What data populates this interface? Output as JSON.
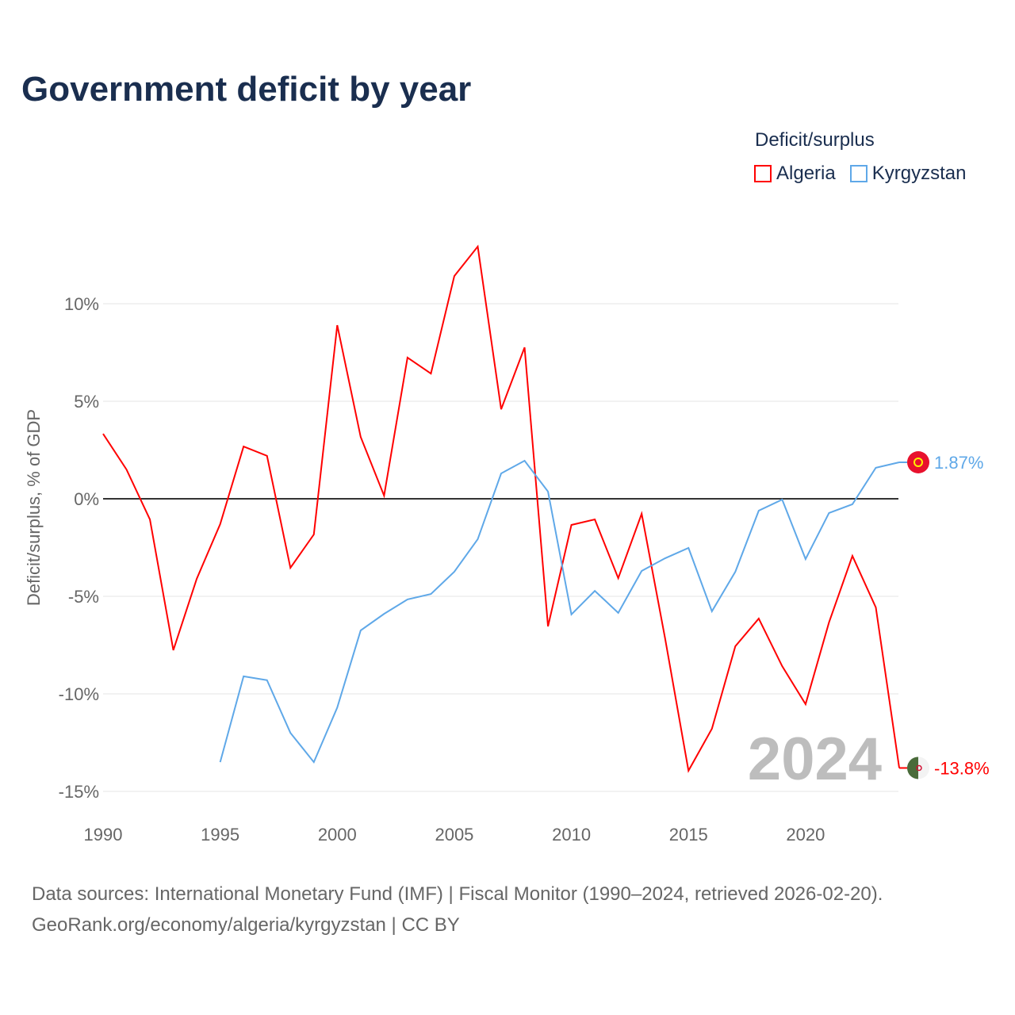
{
  "title": "Government deficit by year",
  "legend_title": "Deficit/surplus",
  "footer": {
    "line1": "Data sources: International Monetary Fund (IMF) | Fiscal Monitor (1990–2024, retrieved 2026-02-20).",
    "line2": "GeoRank.org/economy/algeria/kyrgyzstan | CC BY"
  },
  "chart_data": {
    "type": "line",
    "title": "Government deficit by year",
    "xlabel": "",
    "ylabel": "Deficit/surplus, % of GDP",
    "xlim": [
      1990,
      2024
    ],
    "ylim": [
      -16,
      14
    ],
    "xticks": [
      1990,
      1995,
      2000,
      2005,
      2010,
      2015,
      2020
    ],
    "yticks": [
      10,
      5,
      0,
      -5,
      -10,
      -15
    ],
    "ytick_labels": [
      "10%",
      "5%",
      "0%",
      "-5%",
      "-10%",
      "-15%"
    ],
    "year_watermark": "2024",
    "series": [
      {
        "name": "Algeria",
        "color": "#ff0000",
        "end_label": "-13.8%",
        "x": [
          1990,
          1991,
          1992,
          1993,
          1994,
          1995,
          1996,
          1997,
          1998,
          1999,
          2000,
          2001,
          2002,
          2003,
          2004,
          2005,
          2006,
          2007,
          2008,
          2009,
          2010,
          2011,
          2012,
          2013,
          2014,
          2015,
          2016,
          2017,
          2018,
          2019,
          2020,
          2021,
          2022,
          2023,
          2024
        ],
        "values": [
          3.33,
          1.5,
          -1.06,
          -7.76,
          -4.1,
          -1.3,
          2.68,
          2.2,
          -3.54,
          -1.83,
          8.9,
          3.17,
          0.16,
          7.24,
          6.42,
          11.42,
          12.93,
          4.59,
          7.76,
          -6.54,
          -1.34,
          -1.06,
          -4.07,
          -0.77,
          -7.15,
          -13.94,
          -11.79,
          -7.56,
          -6.14,
          -8.58,
          -10.53,
          -6.34,
          -2.93,
          -5.57,
          -13.8
        ]
      },
      {
        "name": "Kyrgyzstan",
        "color": "#5fa8e8",
        "end_label": "1.87%",
        "x": [
          1995,
          1996,
          1997,
          1998,
          1999,
          2000,
          2001,
          2002,
          2003,
          2004,
          2005,
          2006,
          2007,
          2008,
          2009,
          2010,
          2011,
          2012,
          2013,
          2014,
          2015,
          2016,
          2017,
          2018,
          2019,
          2020,
          2021,
          2022,
          2023,
          2024
        ],
        "values": [
          -13.5,
          -9.1,
          -9.3,
          -12.0,
          -13.5,
          -10.7,
          -6.75,
          -5.9,
          -5.16,
          -4.88,
          -3.74,
          -2.07,
          1.3,
          1.95,
          0.37,
          -5.93,
          -4.72,
          -5.85,
          -3.7,
          -3.05,
          -2.52,
          -5.77,
          -3.74,
          -0.61,
          -0.04,
          -3.09,
          -0.73,
          -0.28,
          1.59,
          1.87
        ]
      }
    ]
  }
}
